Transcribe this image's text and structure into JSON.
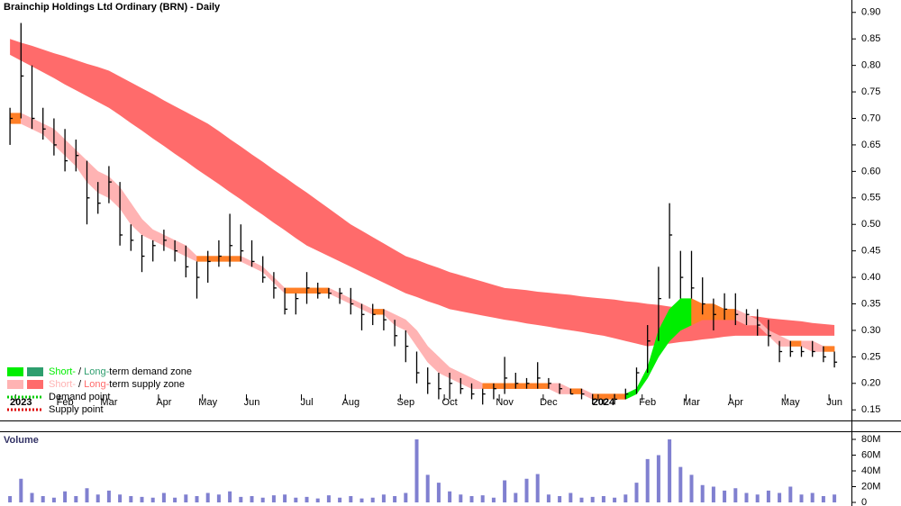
{
  "chart_data": [
    {
      "type": "ohlc",
      "title": "Brainchip Holdings Ltd Ordinary (BRN) - Daily",
      "categories": [
        null,
        "2023",
        null,
        null,
        null,
        "Feb",
        null,
        null,
        null,
        "Mar",
        null,
        null,
        null,
        null,
        "Apr",
        null,
        null,
        null,
        "May",
        null,
        null,
        null,
        "Jun",
        null,
        null,
        null,
        null,
        "Jul",
        null,
        null,
        null,
        "Aug",
        null,
        null,
        null,
        null,
        "Sep",
        null,
        null,
        null,
        "Oct",
        null,
        null,
        null,
        null,
        "Nov",
        null,
        null,
        null,
        "Dec",
        null,
        null,
        null,
        null,
        "2024",
        null,
        null,
        null,
        "Feb",
        null,
        null,
        null,
        "Mar",
        null,
        null,
        null,
        "Apr",
        null,
        null,
        null,
        null,
        "May",
        null,
        null,
        null,
        "Jun"
      ],
      "high": [
        0.72,
        0.88,
        0.8,
        0.72,
        0.7,
        0.68,
        0.66,
        0.62,
        0.58,
        0.61,
        0.58,
        0.5,
        0.48,
        0.47,
        0.49,
        0.47,
        0.46,
        0.43,
        0.45,
        0.47,
        0.52,
        0.5,
        0.47,
        0.44,
        0.41,
        0.38,
        0.37,
        0.41,
        0.39,
        0.38,
        0.38,
        0.38,
        0.35,
        0.35,
        0.34,
        0.32,
        0.3,
        0.26,
        0.23,
        0.22,
        0.22,
        0.21,
        0.2,
        0.19,
        0.2,
        0.25,
        0.22,
        0.21,
        0.24,
        0.21,
        0.2,
        0.19,
        0.19,
        0.18,
        0.17,
        0.18,
        0.19,
        0.23,
        0.31,
        0.42,
        0.54,
        0.45,
        0.45,
        0.4,
        0.36,
        0.37,
        0.37,
        0.34,
        0.34,
        0.32,
        0.28,
        0.28,
        0.27,
        0.28,
        0.27,
        0.26
      ],
      "low": [
        0.65,
        0.7,
        0.68,
        0.66,
        0.63,
        0.6,
        0.6,
        0.5,
        0.52,
        0.54,
        0.46,
        0.45,
        0.41,
        0.43,
        0.45,
        0.43,
        0.4,
        0.36,
        0.39,
        0.42,
        0.42,
        0.43,
        0.42,
        0.39,
        0.36,
        0.33,
        0.33,
        0.35,
        0.36,
        0.36,
        0.35,
        0.33,
        0.3,
        0.31,
        0.3,
        0.27,
        0.24,
        0.2,
        0.18,
        0.17,
        0.17,
        0.18,
        0.17,
        0.16,
        0.17,
        0.18,
        0.19,
        0.19,
        0.19,
        0.19,
        0.18,
        0.18,
        0.17,
        0.16,
        0.16,
        0.16,
        0.17,
        0.18,
        0.22,
        0.28,
        0.36,
        0.36,
        0.36,
        0.33,
        0.3,
        0.32,
        0.31,
        0.31,
        0.29,
        0.27,
        0.24,
        0.25,
        0.25,
        0.25,
        0.24,
        0.23
      ],
      "close": [
        0.7,
        0.78,
        0.7,
        0.68,
        0.65,
        0.62,
        0.63,
        0.55,
        0.54,
        0.58,
        0.48,
        0.47,
        0.44,
        0.46,
        0.47,
        0.45,
        0.42,
        0.4,
        0.43,
        0.44,
        0.46,
        0.45,
        0.43,
        0.4,
        0.38,
        0.34,
        0.36,
        0.38,
        0.37,
        0.37,
        0.37,
        0.35,
        0.33,
        0.33,
        0.32,
        0.29,
        0.27,
        0.22,
        0.2,
        0.19,
        0.2,
        0.19,
        0.18,
        0.18,
        0.19,
        0.21,
        0.2,
        0.2,
        0.21,
        0.2,
        0.19,
        0.18,
        0.18,
        0.17,
        0.16,
        0.17,
        0.18,
        0.22,
        0.28,
        0.36,
        0.48,
        0.4,
        0.38,
        0.35,
        0.33,
        0.34,
        0.33,
        0.33,
        0.31,
        0.29,
        0.26,
        0.26,
        0.26,
        0.26,
        0.25,
        0.24
      ],
      "long_band": {
        "color": "#ff6b6b",
        "upper": [
          0.85,
          0.843,
          0.837,
          0.83,
          0.823,
          0.817,
          0.81,
          0.803,
          0.797,
          0.79,
          0.779,
          0.768,
          0.757,
          0.746,
          0.734,
          0.723,
          0.712,
          0.701,
          0.69,
          0.676,
          0.661,
          0.647,
          0.632,
          0.618,
          0.603,
          0.589,
          0.574,
          0.56,
          0.545,
          0.53,
          0.515,
          0.5,
          0.488,
          0.476,
          0.464,
          0.452,
          0.44,
          0.433,
          0.425,
          0.418,
          0.41,
          0.404,
          0.398,
          0.392,
          0.386,
          0.38,
          0.378,
          0.376,
          0.373,
          0.371,
          0.369,
          0.367,
          0.364,
          0.362,
          0.36,
          0.358,
          0.355,
          0.353,
          0.35,
          0.348,
          0.345,
          0.343,
          0.34,
          0.338,
          0.335,
          0.333,
          0.33,
          0.328,
          0.326,
          0.323,
          0.321,
          0.319,
          0.317,
          0.314,
          0.312,
          0.31
        ],
        "lower": [
          0.82,
          0.809,
          0.798,
          0.787,
          0.776,
          0.764,
          0.753,
          0.742,
          0.731,
          0.72,
          0.706,
          0.691,
          0.677,
          0.662,
          0.648,
          0.633,
          0.619,
          0.604,
          0.59,
          0.576,
          0.561,
          0.547,
          0.532,
          0.518,
          0.503,
          0.489,
          0.474,
          0.46,
          0.45,
          0.44,
          0.43,
          0.42,
          0.41,
          0.4,
          0.39,
          0.38,
          0.37,
          0.363,
          0.355,
          0.348,
          0.34,
          0.336,
          0.332,
          0.328,
          0.324,
          0.32,
          0.317,
          0.313,
          0.31,
          0.307,
          0.303,
          0.3,
          0.297,
          0.293,
          0.29,
          0.285,
          0.28,
          0.275,
          0.27,
          0.273,
          0.275,
          0.278,
          0.28,
          0.283,
          0.285,
          0.288,
          0.29,
          0.29,
          0.29,
          0.29,
          0.29,
          0.29,
          0.29,
          0.29,
          0.29,
          0.29
        ]
      },
      "short_band": {
        "flat_color": "#ff7f27",
        "upper": [
          0.71,
          0.71,
          0.7,
          0.69,
          0.68,
          0.66,
          0.64,
          0.62,
          0.6,
          0.59,
          0.57,
          0.54,
          0.51,
          0.49,
          0.48,
          0.47,
          0.46,
          0.44,
          0.44,
          0.44,
          0.44,
          0.44,
          0.43,
          0.42,
          0.4,
          0.38,
          0.38,
          0.38,
          0.38,
          0.38,
          0.37,
          0.36,
          0.35,
          0.34,
          0.34,
          0.33,
          0.32,
          0.3,
          0.27,
          0.25,
          0.23,
          0.22,
          0.21,
          0.2,
          0.2,
          0.2,
          0.2,
          0.2,
          0.2,
          0.2,
          0.2,
          0.19,
          0.19,
          0.18,
          0.18,
          0.18,
          0.18,
          0.19,
          0.23,
          0.3,
          0.34,
          0.36,
          0.36,
          0.35,
          0.35,
          0.34,
          0.34,
          0.33,
          0.32,
          0.3,
          0.29,
          0.28,
          0.28,
          0.28,
          0.27,
          0.27
        ],
        "lower": [
          0.69,
          0.69,
          0.68,
          0.67,
          0.65,
          0.63,
          0.61,
          0.58,
          0.56,
          0.55,
          0.53,
          0.5,
          0.48,
          0.47,
          0.46,
          0.45,
          0.44,
          0.43,
          0.43,
          0.43,
          0.43,
          0.43,
          0.42,
          0.41,
          0.39,
          0.37,
          0.37,
          0.37,
          0.37,
          0.37,
          0.36,
          0.35,
          0.34,
          0.33,
          0.33,
          0.31,
          0.3,
          0.27,
          0.24,
          0.22,
          0.21,
          0.2,
          0.19,
          0.19,
          0.19,
          0.19,
          0.19,
          0.19,
          0.19,
          0.19,
          0.18,
          0.18,
          0.18,
          0.17,
          0.17,
          0.17,
          0.17,
          0.18,
          0.21,
          0.25,
          0.28,
          0.3,
          0.31,
          0.32,
          0.32,
          0.32,
          0.32,
          0.31,
          0.31,
          0.29,
          0.27,
          0.27,
          0.27,
          0.26,
          0.26,
          0.26
        ]
      },
      "ylim": [
        0.13,
        0.92
      ],
      "yticks": [
        0.15,
        {
          "value": 0.2,
          "label": "0.20"
        },
        0.25,
        {
          "value": 0.3,
          "label": "0.30"
        },
        0.35,
        {
          "value": 0.4,
          "label": "0.40"
        },
        0.45,
        {
          "value": 0.5,
          "label": "0.50"
        },
        0.55,
        {
          "value": 0.6,
          "label": "0.60"
        },
        0.65,
        {
          "value": 0.7,
          "label": "0.70"
        },
        0.75,
        {
          "value": 0.8,
          "label": "0.80"
        },
        0.85,
        {
          "value": 0.9,
          "label": "0.90"
        }
      ],
      "legend": [
        {
          "parts": [
            "Short-",
            " / ",
            "Long-",
            "term demand zone"
          ],
          "swatches": [
            "#00ee00",
            "#2e9e6e"
          ]
        },
        {
          "parts": [
            "Short-",
            " / ",
            "Long-",
            "term supply zone"
          ],
          "swatches": [
            "#ffb3b3",
            "#ff6b6b"
          ]
        },
        {
          "parts": [
            "Demand point"
          ],
          "dots": "#00cc00"
        },
        {
          "parts": [
            "Supply point"
          ],
          "dots": "#dd0000"
        }
      ]
    },
    {
      "type": "bar",
      "title": "Volume",
      "color": "#8080d0",
      "values": [
        8000000.0,
        30000000.0,
        12000000.0,
        8000000.0,
        6000000.0,
        14000000.0,
        8000000.0,
        18000000.0,
        10000000.0,
        15000000.0,
        10000000.0,
        8000000.0,
        7000000.0,
        6000000.0,
        12000000.0,
        6000000.0,
        10000000.0,
        8000000.0,
        12000000.0,
        10000000.0,
        14000000.0,
        7000000.0,
        8000000.0,
        6000000.0,
        9000000.0,
        10000000.0,
        6000000.0,
        7000000.0,
        5000000.0,
        9000000.0,
        6000000.0,
        8000000.0,
        5000000.0,
        6000000.0,
        10000000.0,
        8000000.0,
        12000000.0,
        80000000.0,
        35000000.0,
        25000000.0,
        14000000.0,
        10000000.0,
        8000000.0,
        9000000.0,
        6000000.0,
        28000000.0,
        12000000.0,
        30000000.0,
        36000000.0,
        10000000.0,
        8000000.0,
        12000000.0,
        6000000.0,
        7000000.0,
        8000000.0,
        6000000.0,
        10000000.0,
        25000000.0,
        55000000.0,
        60000000.0,
        80000000.0,
        45000000.0,
        35000000.0,
        22000000.0,
        20000000.0,
        15000000.0,
        18000000.0,
        12000000.0,
        10000000.0,
        15000000.0,
        12000000.0,
        20000000.0,
        10000000.0,
        12000000.0,
        8000000.0,
        10000000.0
      ],
      "ylim": [
        0,
        88000000.0
      ],
      "yticks": [
        0,
        {
          "value": 20000000.0,
          "label": "20M"
        },
        {
          "value": 40000000.0,
          "label": "40M"
        },
        {
          "value": 60000000.0,
          "label": "60M"
        },
        {
          "value": 80000000.0,
          "label": "80M"
        }
      ]
    }
  ]
}
